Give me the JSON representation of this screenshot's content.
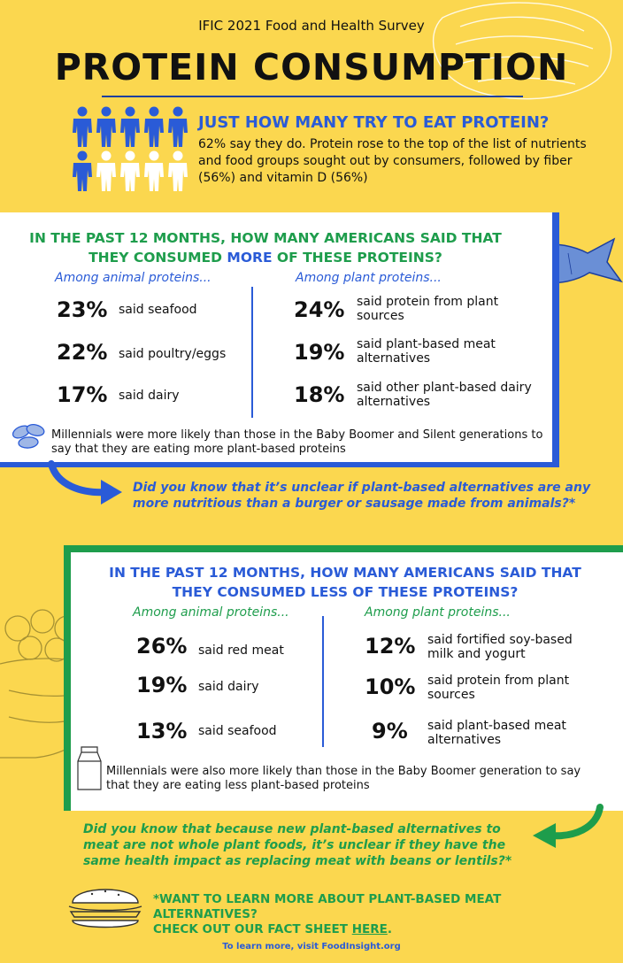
{
  "header": {
    "survey": "IFIC 2021 Food and Health Survey",
    "title": "PROTEIN CONSUMPTION"
  },
  "intro": {
    "question": "JUST HOW MANY TRY TO EAT PROTEIN?",
    "text": "62% say they do. Protein rose to the top of the list of nutrients and food groups sought out by consumers, followed by fiber (56%) and vitamin D (56%)",
    "people_filled_fraction": 0.6
  },
  "more": {
    "heading_a": "IN THE PAST 12 MONTHS, HOW MANY AMERICANS SAID THAT",
    "heading_b": "THEY CONSUMED ",
    "heading_hl": "MORE",
    "heading_c": " OF THESE PROTEINS?",
    "animal_label": "Among animal proteins...",
    "plant_label": "Among plant proteins...",
    "animal": [
      {
        "pct": "23%",
        "text": "said seafood"
      },
      {
        "pct": "22%",
        "text": "said poultry/eggs"
      },
      {
        "pct": "17%",
        "text": "said dairy"
      }
    ],
    "plant": [
      {
        "pct": "24%",
        "text": "said protein from plant sources"
      },
      {
        "pct": "19%",
        "text": "said plant-based meat alternatives"
      },
      {
        "pct": "18%",
        "text": "said other plant-based dairy alternatives"
      }
    ],
    "note": "Millennials were more likely than those in the Baby Boomer and Silent generations to say that they are eating more plant-based proteins",
    "did_you_know": "Did you know that it’s unclear if plant-based alternatives are any more nutritious than a burger or sausage made from animals?*"
  },
  "less": {
    "heading_a": "IN THE PAST 12 MONTHS, HOW MANY AMERICANS SAID THAT",
    "heading_b": "THEY CONSUMED LESS OF THESE PROTEINS?",
    "animal_label": "Among animal proteins...",
    "plant_label": "Among plant proteins...",
    "animal": [
      {
        "pct": "26%",
        "text": "said red meat"
      },
      {
        "pct": "19%",
        "text": "said dairy"
      },
      {
        "pct": "13%",
        "text": "said seafood"
      }
    ],
    "plant": [
      {
        "pct": "12%",
        "text": "said fortified soy-based milk and yogurt"
      },
      {
        "pct": "10%",
        "text": "said protein from plant sources"
      },
      {
        "pct": "9%",
        "text": "said plant-based meat alternatives"
      }
    ],
    "note": "Millennials were also more likely than those in the Baby Boomer generation to say that they are eating less plant-based proteins",
    "did_you_know": "Did you know that because new plant-based alternatives to meat are not whole plant foods, it’s unclear if they have the same health impact as replacing meat with beans or lentils?*"
  },
  "cta": {
    "line1": "*WANT TO LEARN MORE ABOUT PLANT-BASED MEAT ALTERNATIVES?",
    "line2_pre": "CHECK OUT OUR FACT SHEET ",
    "link": "HERE",
    "line2_post": "."
  },
  "footer": "To learn more, visit FoodInsight.org",
  "colors": {
    "background": "#fbd74f",
    "blue": "#2a5bd7",
    "green": "#1e9d4c",
    "navy": "#1d3f9e"
  }
}
